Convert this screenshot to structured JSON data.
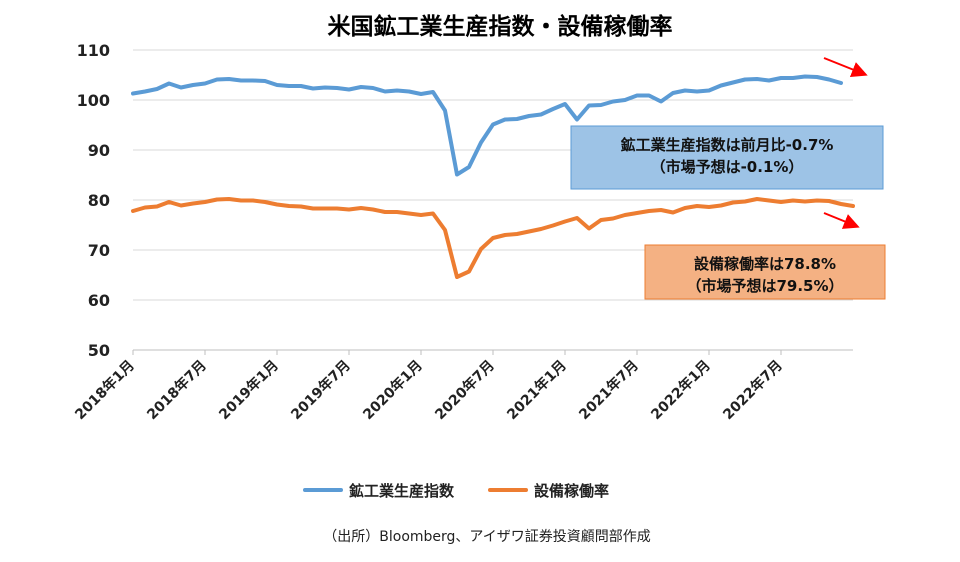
{
  "chart_data": {
    "type": "line",
    "title": "米国鉱工業生産指数・設備稼働率",
    "ylim": [
      50,
      110
    ],
    "yticks": [
      50,
      60,
      70,
      80,
      90,
      100,
      110
    ],
    "grid": "horizontal",
    "x": [
      "2018-01",
      "2018-02",
      "2018-03",
      "2018-04",
      "2018-05",
      "2018-06",
      "2018-07",
      "2018-08",
      "2018-09",
      "2018-10",
      "2018-11",
      "2018-12",
      "2019-01",
      "2019-02",
      "2019-03",
      "2019-04",
      "2019-05",
      "2019-06",
      "2019-07",
      "2019-08",
      "2019-09",
      "2019-10",
      "2019-11",
      "2019-12",
      "2020-01",
      "2020-02",
      "2020-03",
      "2020-04",
      "2020-05",
      "2020-06",
      "2020-07",
      "2020-08",
      "2020-09",
      "2020-10",
      "2020-11",
      "2020-12",
      "2021-01",
      "2021-02",
      "2021-03",
      "2021-04",
      "2021-05",
      "2021-06",
      "2021-07",
      "2021-08",
      "2021-09",
      "2021-10",
      "2021-11",
      "2021-12",
      "2022-01",
      "2022-02",
      "2022-03",
      "2022-04",
      "2022-05",
      "2022-06",
      "2022-07",
      "2022-08",
      "2022-09",
      "2022-10",
      "2022-11",
      "2022-12",
      "2023-01"
    ],
    "x_tick_labels": [
      "2018年1月",
      "2018年7月",
      "2019年1月",
      "2019年7月",
      "2020年1月",
      "2020年7月",
      "2021年1月",
      "2021年7月",
      "2022年1月",
      "2022年7月"
    ],
    "x_tick_index": [
      0,
      6,
      12,
      18,
      24,
      30,
      36,
      42,
      48,
      54
    ],
    "series": [
      {
        "name": "鉱工業生産指数",
        "color": "#5B9BD5",
        "values": [
          101.3,
          101.7,
          102.2,
          103.3,
          102.5,
          103.0,
          103.3,
          104.1,
          104.2,
          103.9,
          103.9,
          103.8,
          103.0,
          102.8,
          102.8,
          102.3,
          102.5,
          102.4,
          102.1,
          102.6,
          102.4,
          101.7,
          101.9,
          101.7,
          101.2,
          101.6,
          97.9,
          85.1,
          86.6,
          91.5,
          95.1,
          96.1,
          96.2,
          96.8,
          97.1,
          98.2,
          99.2,
          96.1,
          98.9,
          99.0,
          99.7,
          100.0,
          100.9,
          100.9,
          99.7,
          101.4,
          101.9,
          101.7,
          101.9,
          102.9,
          103.5,
          104.1,
          104.2,
          103.9,
          104.4,
          104.4,
          104.7,
          104.6,
          104.1,
          103.4,
          null
        ]
      },
      {
        "name": "設備稼働率",
        "color": "#ED7D31",
        "values": [
          77.8,
          78.5,
          78.7,
          79.6,
          78.9,
          79.3,
          79.6,
          80.1,
          80.2,
          79.9,
          79.9,
          79.6,
          79.1,
          78.8,
          78.7,
          78.3,
          78.3,
          78.3,
          78.1,
          78.4,
          78.1,
          77.6,
          77.6,
          77.3,
          77.0,
          77.3,
          74.0,
          64.6,
          65.7,
          70.2,
          72.4,
          73.0,
          73.2,
          73.7,
          74.2,
          74.9,
          75.7,
          76.4,
          74.3,
          76.0,
          76.3,
          77.0,
          77.4,
          77.8,
          78.0,
          77.5,
          78.4,
          78.8,
          78.6,
          78.9,
          79.5,
          79.7,
          80.2,
          79.9,
          79.6,
          79.9,
          79.7,
          79.9,
          79.8,
          79.2,
          78.8
        ]
      }
    ],
    "annotations": [
      {
        "lines": [
          "鉱工業生産指数は前月比-0.7%",
          "（市場予想は-0.1%）"
        ],
        "fill": "#9DC3E6",
        "border": "#5B9BD5"
      },
      {
        "lines": [
          "設備稼働率は78.8%",
          "（市場予想は79.5%）"
        ],
        "fill": "#F4B183",
        "border": "#ED7D31"
      }
    ],
    "arrow_color": "#FF0000",
    "legend": "bottom"
  },
  "source": "（出所）Bloomberg、アイザワ証券投資顧問部作成"
}
